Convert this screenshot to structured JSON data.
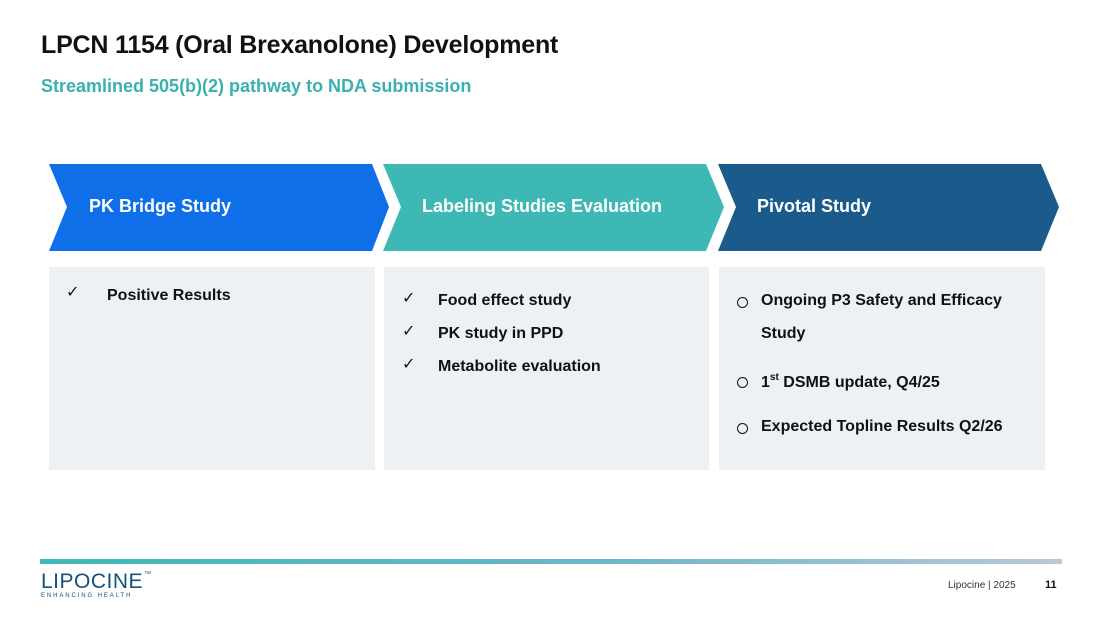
{
  "title": "LPCN 1154 (Oral Brexanolone) Development",
  "subtitle": "Streamlined 505(b)(2) pathway to NDA submission",
  "colors": {
    "chevron_1": "#0e6fe8",
    "chevron_2": "#3db8b5",
    "chevron_3": "#1a5b8c",
    "panel_bg": "#eef1f4",
    "subtitle": "#3ab0b0"
  },
  "columns": [
    {
      "heading": "PK Bridge Study",
      "bullet_style": "check",
      "items": [
        "Positive Results"
      ]
    },
    {
      "heading": "Labeling Studies Evaluation",
      "bullet_style": "check",
      "items": [
        "Food effect study",
        "PK study in PPD",
        "Metabolite evaluation"
      ]
    },
    {
      "heading": "Pivotal Study",
      "bullet_style": "circle",
      "items": [
        {
          "line1": "Ongoing P3 Safety and Efficacy",
          "line2": "Study"
        },
        {
          "pre": "1",
          "sup": "st",
          "post": " DSMB update, Q4/25"
        },
        {
          "text": "Expected Topline Results Q2/26"
        }
      ]
    }
  ],
  "footer": {
    "logo_text": "LIPOCINE",
    "logo_tm": "™",
    "logo_tagline": "ENHANCING HEALTH",
    "company_year": "Lipocine  |  2025",
    "page_number": "11"
  }
}
